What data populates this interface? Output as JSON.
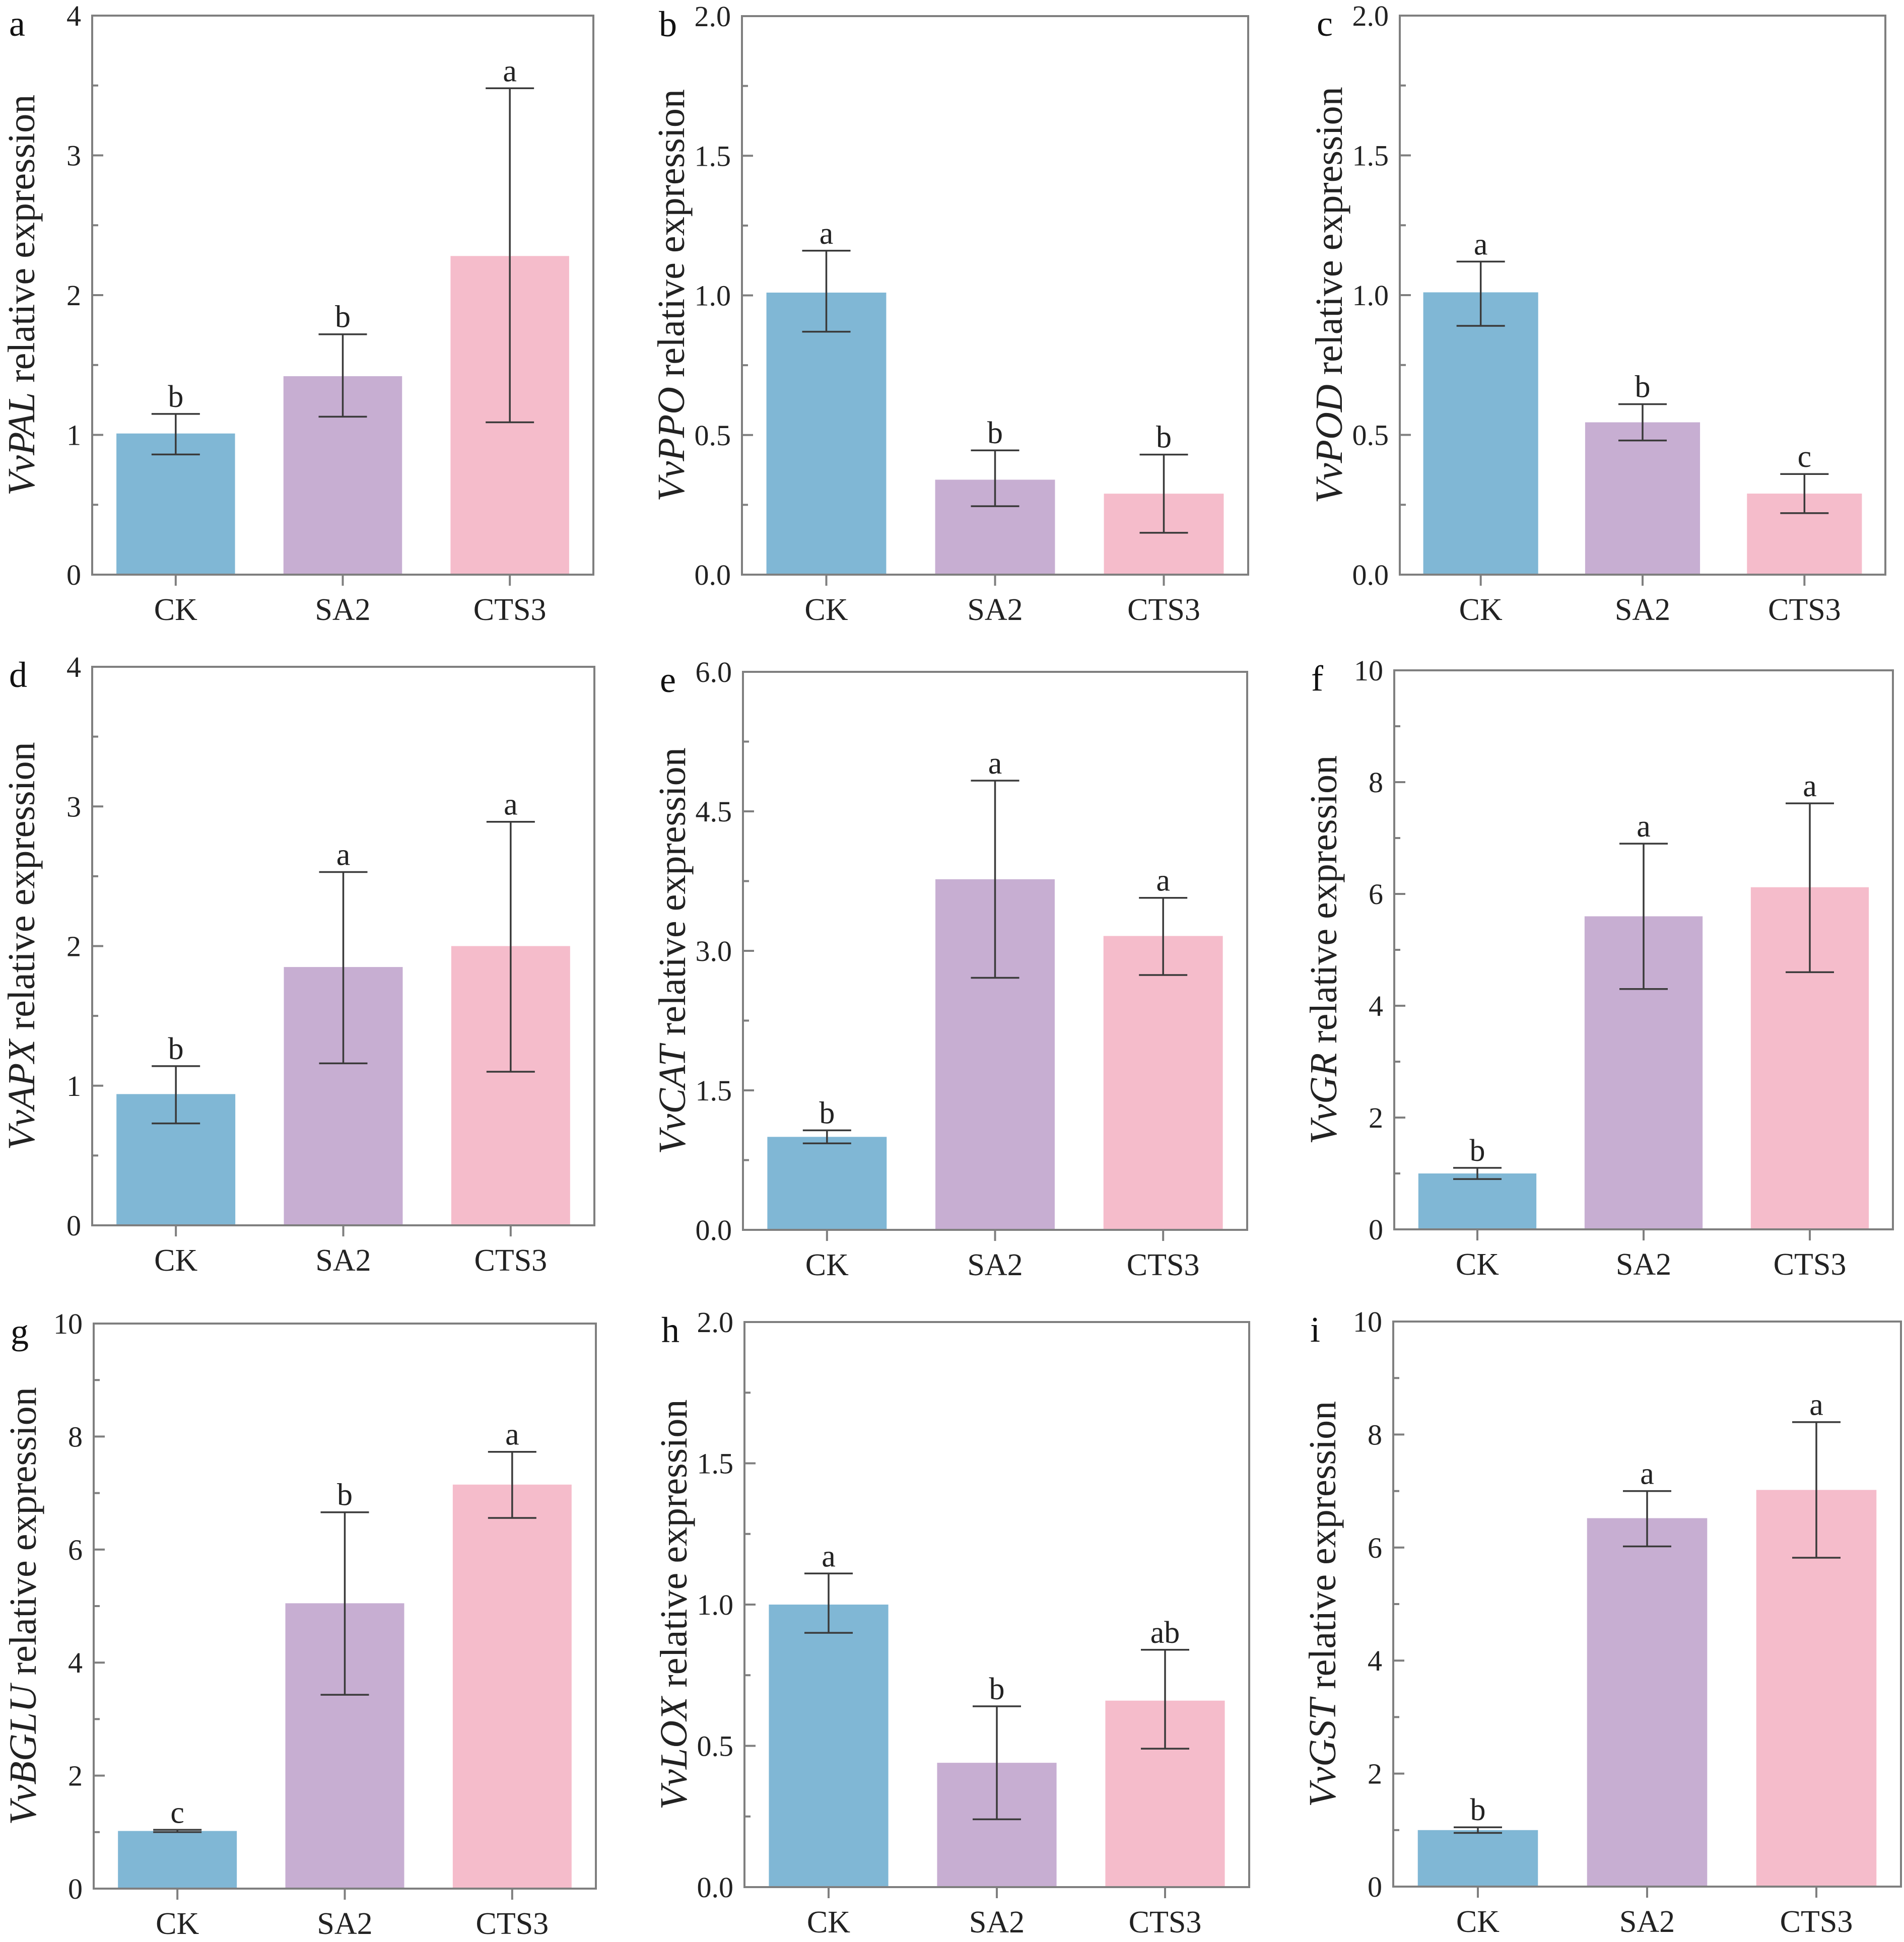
{
  "figure": {
    "colors": {
      "CK": "#80B7D5",
      "SA2": "#C7AED2",
      "CTS3": "#F5BCCB",
      "frame": "#7f7f7f",
      "error_bar": "#3a3a3a"
    }
  },
  "chart_data": [
    {
      "type": "bar",
      "panel": "a",
      "gene": "VvPAL",
      "ylabel_suffix": " relative expression",
      "categories": [
        "CK",
        "SA2",
        "CTS3"
      ],
      "values": [
        1.01,
        1.42,
        2.28
      ],
      "error_low": [
        0.86,
        1.13,
        1.09
      ],
      "error_high": [
        1.15,
        1.72,
        3.48
      ],
      "significance": [
        "b",
        "b",
        "a"
      ],
      "ylim": [
        0,
        4
      ],
      "yticks": [
        0,
        1,
        2,
        3,
        4
      ],
      "ytick_labels": [
        "0",
        "1",
        "2",
        "3",
        "4"
      ],
      "minor_step": 0.5,
      "xlabel": "",
      "grid": false
    },
    {
      "type": "bar",
      "panel": "b",
      "gene": "VvPPO",
      "ylabel_suffix": " relative expression",
      "categories": [
        "CK",
        "SA2",
        "CTS3"
      ],
      "values": [
        1.01,
        0.34,
        0.29
      ],
      "error_low": [
        0.87,
        0.245,
        0.15
      ],
      "error_high": [
        1.16,
        0.445,
        0.43
      ],
      "significance": [
        "a",
        "b",
        "b"
      ],
      "ylim": [
        0,
        2.0
      ],
      "yticks": [
        0,
        0.5,
        1.0,
        1.5,
        2.0
      ],
      "ytick_labels": [
        "0.0",
        "0.5",
        "1.0",
        "1.5",
        "2.0"
      ],
      "minor_step": 0.25,
      "xlabel": "",
      "grid": false
    },
    {
      "type": "bar",
      "panel": "c",
      "gene": "VvPOD",
      "ylabel_suffix": " relative expression",
      "categories": [
        "CK",
        "SA2",
        "CTS3"
      ],
      "values": [
        1.01,
        0.545,
        0.29
      ],
      "error_low": [
        0.89,
        0.48,
        0.22
      ],
      "error_high": [
        1.12,
        0.61,
        0.36
      ],
      "significance": [
        "a",
        "b",
        "c"
      ],
      "ylim": [
        0,
        2.0
      ],
      "yticks": [
        0,
        0.5,
        1.0,
        1.5,
        2.0
      ],
      "ytick_labels": [
        "0.0",
        "0.5",
        "1.0",
        "1.5",
        "2.0"
      ],
      "minor_step": 0.25,
      "xlabel": "",
      "grid": false
    },
    {
      "type": "bar",
      "panel": "d",
      "gene": "VvAPX",
      "ylabel_suffix": " relative expression",
      "categories": [
        "CK",
        "SA2",
        "CTS3"
      ],
      "values": [
        0.94,
        1.85,
        2.0
      ],
      "error_low": [
        0.73,
        1.16,
        1.1
      ],
      "error_high": [
        1.14,
        2.53,
        2.89
      ],
      "significance": [
        "b",
        "a",
        "a"
      ],
      "ylim": [
        0,
        4
      ],
      "yticks": [
        0,
        1,
        2,
        3,
        4
      ],
      "ytick_labels": [
        "0",
        "1",
        "2",
        "3",
        "4"
      ],
      "minor_step": 0.5,
      "xlabel": "",
      "grid": false
    },
    {
      "type": "bar",
      "panel": "e",
      "gene": "VvCAT",
      "ylabel_suffix": " relative expression",
      "categories": [
        "CK",
        "SA2",
        "CTS3"
      ],
      "values": [
        1.0,
        3.77,
        3.16
      ],
      "error_low": [
        0.93,
        2.71,
        2.74
      ],
      "error_high": [
        1.07,
        4.83,
        3.57
      ],
      "significance": [
        "b",
        "a",
        "a"
      ],
      "ylim": [
        0,
        6.0
      ],
      "yticks": [
        0,
        1.5,
        3.0,
        4.5,
        6.0
      ],
      "ytick_labels": [
        "0.0",
        "1.5",
        "3.0",
        "4.5",
        "6.0"
      ],
      "minor_step": 0.75,
      "xlabel": "",
      "grid": false
    },
    {
      "type": "bar",
      "panel": "f",
      "gene": "VvGR",
      "ylabel_suffix": " relative expression",
      "categories": [
        "CK",
        "SA2",
        "CTS3"
      ],
      "values": [
        1.0,
        5.6,
        6.12
      ],
      "error_low": [
        0.9,
        4.3,
        4.6
      ],
      "error_high": [
        1.1,
        6.9,
        7.62
      ],
      "significance": [
        "b",
        "a",
        "a"
      ],
      "ylim": [
        0,
        10
      ],
      "yticks": [
        0,
        2,
        4,
        6,
        8,
        10
      ],
      "ytick_labels": [
        "0",
        "2",
        "4",
        "6",
        "8",
        "10"
      ],
      "minor_step": 1,
      "xlabel": "",
      "grid": false
    },
    {
      "type": "bar",
      "panel": "g",
      "gene": "VvBGLU",
      "ylabel_suffix": " relative expression",
      "categories": [
        "CK",
        "SA2",
        "CTS3"
      ],
      "values": [
        1.02,
        5.05,
        7.15
      ],
      "error_low": [
        1.0,
        3.43,
        6.56
      ],
      "error_high": [
        1.04,
        6.66,
        7.73
      ],
      "significance": [
        "c",
        "b",
        "a"
      ],
      "ylim": [
        0,
        10
      ],
      "yticks": [
        0,
        2,
        4,
        6,
        8,
        10
      ],
      "ytick_labels": [
        "0",
        "2",
        "4",
        "6",
        "8",
        "10"
      ],
      "minor_step": 1,
      "xlabel": "",
      "grid": false
    },
    {
      "type": "bar",
      "panel": "h",
      "gene": "VvLOX",
      "ylabel_suffix": " relative expression",
      "categories": [
        "CK",
        "SA2",
        "CTS3"
      ],
      "values": [
        1.0,
        0.44,
        0.66
      ],
      "error_low": [
        0.9,
        0.24,
        0.49
      ],
      "error_high": [
        1.11,
        0.64,
        0.84
      ],
      "significance": [
        "a",
        "b",
        "ab"
      ],
      "ylim": [
        0,
        2.0
      ],
      "yticks": [
        0,
        0.5,
        1.0,
        1.5,
        2.0
      ],
      "ytick_labels": [
        "0.0",
        "0.5",
        "1.0",
        "1.5",
        "2.0"
      ],
      "minor_step": 0.25,
      "xlabel": "",
      "grid": false
    },
    {
      "type": "bar",
      "panel": "i",
      "gene": "VvGST",
      "ylabel_suffix": " relative expression",
      "categories": [
        "CK",
        "SA2",
        "CTS3"
      ],
      "values": [
        1.0,
        6.52,
        7.02
      ],
      "error_low": [
        0.95,
        6.02,
        5.82
      ],
      "error_high": [
        1.05,
        7.0,
        8.22
      ],
      "significance": [
        "b",
        "a",
        "a"
      ],
      "ylim": [
        0,
        10
      ],
      "yticks": [
        0,
        2,
        4,
        6,
        8,
        10
      ],
      "ytick_labels": [
        "0",
        "2",
        "4",
        "6",
        "8",
        "10"
      ],
      "minor_step": 1,
      "xlabel": "",
      "grid": false
    }
  ]
}
